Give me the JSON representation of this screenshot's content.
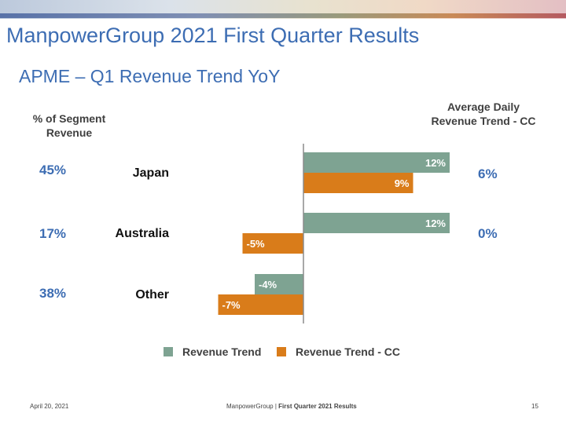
{
  "header": {
    "title": "ManpowerGroup 2021 First Quarter Results",
    "subtitle": "APME – Q1 Revenue Trend YoY"
  },
  "columns": {
    "share_header_line1": "% of Segment",
    "share_header_line2": "Revenue",
    "adr_header_line1": "Average Daily",
    "adr_header_line2": "Revenue Trend - CC"
  },
  "rows": [
    {
      "region": "Japan",
      "share": "45%",
      "adr": "6%"
    },
    {
      "region": "Australia",
      "share": "17%",
      "adr": "0%"
    },
    {
      "region": "Other",
      "share": "38%",
      "adr": ""
    }
  ],
  "chart_data": {
    "type": "bar",
    "orientation": "horizontal",
    "categories": [
      "Japan",
      "Australia",
      "Other"
    ],
    "series": [
      {
        "name": "Revenue Trend",
        "color": "#7ea392",
        "values": [
          12,
          12,
          -4
        ],
        "labels": [
          "12%",
          "12%",
          "-4%"
        ]
      },
      {
        "name": "Revenue Trend - CC",
        "color": "#d97c1a",
        "values": [
          9,
          -5,
          -7
        ],
        "labels": [
          "9%",
          "-5%",
          "-7%"
        ]
      }
    ],
    "xlim": [
      -8,
      14
    ],
    "grid": false,
    "legend": "bottom"
  },
  "footer": {
    "date": "April 20, 2021",
    "company": "ManpowerGroup",
    "separator": "|",
    "report": "First Quarter 2021 Results",
    "page": "15"
  }
}
